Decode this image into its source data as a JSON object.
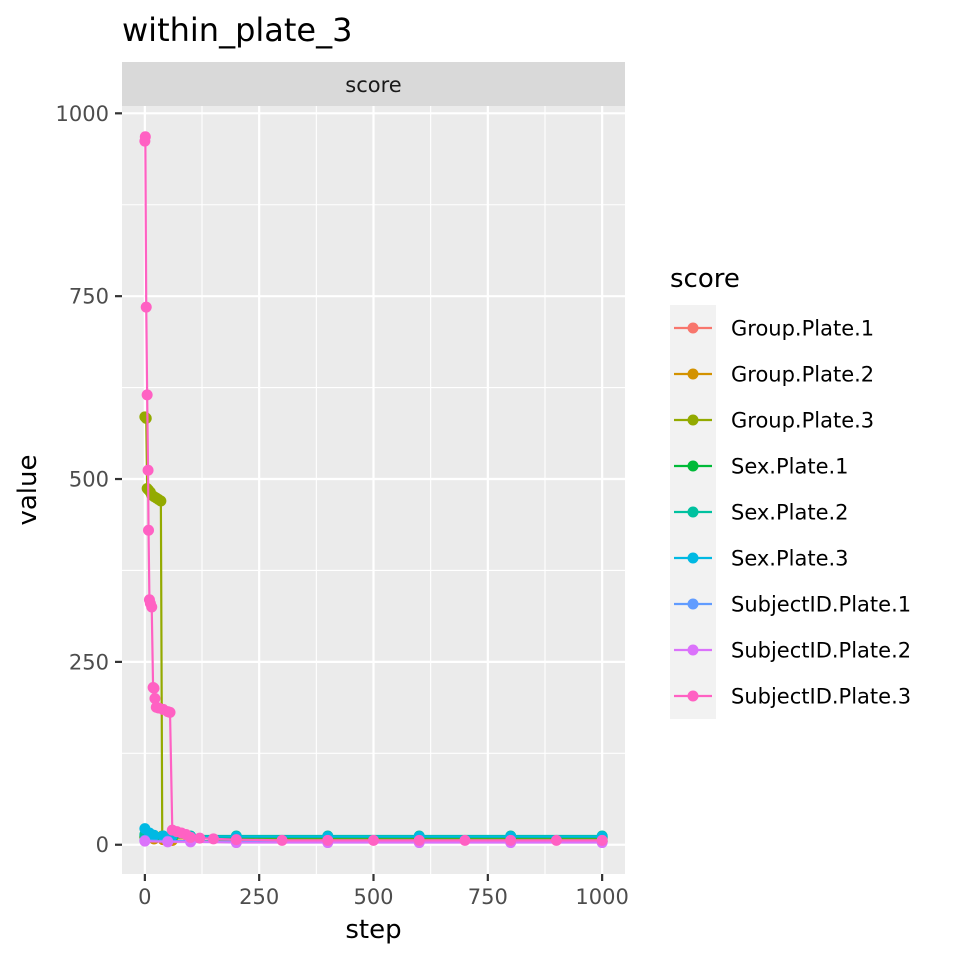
{
  "chart_data": {
    "type": "line",
    "title": "within_plate_3",
    "facet_label": "score",
    "xlabel": "step",
    "ylabel": "value",
    "xlim": [
      -50,
      1050
    ],
    "ylim": [
      -40,
      1010
    ],
    "x_ticks": [
      0,
      250,
      500,
      750,
      1000
    ],
    "x_tick_labels": [
      "0",
      "250",
      "500",
      "750",
      "1000"
    ],
    "y_ticks": [
      0,
      250,
      500,
      750,
      1000
    ],
    "y_tick_labels": [
      "0",
      "250",
      "500",
      "750",
      "1000"
    ],
    "grid": true,
    "legend": {
      "title": "score",
      "position": "right"
    },
    "series": [
      {
        "name": "Group.Plate.1",
        "color": "#F8766D",
        "points": [
          [
            0,
            10
          ],
          [
            20,
            8
          ],
          [
            40,
            7
          ],
          [
            60,
            6
          ],
          [
            100,
            5
          ],
          [
            200,
            5
          ],
          [
            400,
            5
          ],
          [
            600,
            5
          ],
          [
            800,
            5
          ],
          [
            1000,
            5
          ]
        ]
      },
      {
        "name": "Group.Plate.2",
        "color": "#D39200",
        "points": [
          [
            0,
            10
          ],
          [
            20,
            8
          ],
          [
            40,
            7
          ],
          [
            60,
            6
          ],
          [
            100,
            5
          ],
          [
            200,
            5
          ],
          [
            400,
            5
          ],
          [
            600,
            5
          ],
          [
            800,
            5
          ],
          [
            1000,
            5
          ]
        ]
      },
      {
        "name": "Group.Plate.3",
        "color": "#93AA00",
        "points": [
          [
            0,
            585
          ],
          [
            3,
            583
          ],
          [
            5,
            487
          ],
          [
            8,
            485
          ],
          [
            12,
            482
          ],
          [
            15,
            478
          ],
          [
            20,
            476
          ],
          [
            25,
            474
          ],
          [
            30,
            472
          ],
          [
            35,
            470
          ],
          [
            38,
            12
          ],
          [
            60,
            10
          ],
          [
            100,
            9
          ],
          [
            200,
            8
          ],
          [
            400,
            8
          ],
          [
            600,
            8
          ],
          [
            800,
            8
          ],
          [
            1000,
            8
          ]
        ]
      },
      {
        "name": "Sex.Plate.1",
        "color": "#00BA38",
        "points": [
          [
            0,
            12
          ],
          [
            20,
            11
          ],
          [
            40,
            10
          ],
          [
            60,
            10
          ],
          [
            100,
            10
          ],
          [
            200,
            10
          ],
          [
            400,
            10
          ],
          [
            600,
            10
          ],
          [
            800,
            10
          ],
          [
            1000,
            10
          ]
        ]
      },
      {
        "name": "Sex.Plate.2",
        "color": "#00C19F",
        "points": [
          [
            0,
            14
          ],
          [
            20,
            12
          ],
          [
            40,
            12
          ],
          [
            60,
            12
          ],
          [
            100,
            12
          ],
          [
            200,
            12
          ],
          [
            400,
            12
          ],
          [
            600,
            12
          ],
          [
            800,
            12
          ],
          [
            1000,
            12
          ]
        ]
      },
      {
        "name": "Sex.Plate.3",
        "color": "#00B9E3",
        "points": [
          [
            0,
            22
          ],
          [
            10,
            16
          ],
          [
            20,
            13
          ],
          [
            40,
            12
          ],
          [
            60,
            12
          ],
          [
            100,
            11
          ],
          [
            200,
            11
          ],
          [
            400,
            11
          ],
          [
            600,
            11
          ],
          [
            800,
            11
          ],
          [
            1000,
            11
          ]
        ]
      },
      {
        "name": "SubjectID.Plate.1",
        "color": "#619CFF",
        "points": [
          [
            0,
            6
          ],
          [
            50,
            5
          ],
          [
            100,
            5
          ],
          [
            200,
            4
          ],
          [
            400,
            4
          ],
          [
            600,
            4
          ],
          [
            800,
            4
          ],
          [
            1000,
            4
          ]
        ]
      },
      {
        "name": "SubjectID.Plate.2",
        "color": "#DB72FB",
        "points": [
          [
            0,
            5
          ],
          [
            50,
            4
          ],
          [
            100,
            4
          ],
          [
            200,
            3
          ],
          [
            400,
            3
          ],
          [
            600,
            3
          ],
          [
            800,
            3
          ],
          [
            1000,
            3
          ]
        ]
      },
      {
        "name": "SubjectID.Plate.3",
        "color": "#FF61C3",
        "points": [
          [
            0,
            962
          ],
          [
            1,
            968
          ],
          [
            3,
            735
          ],
          [
            5,
            615
          ],
          [
            7,
            512
          ],
          [
            8,
            430
          ],
          [
            10,
            335
          ],
          [
            12,
            330
          ],
          [
            15,
            325
          ],
          [
            18,
            215
          ],
          [
            20,
            214
          ],
          [
            22,
            200
          ],
          [
            25,
            188
          ],
          [
            30,
            187
          ],
          [
            40,
            185
          ],
          [
            50,
            182
          ],
          [
            55,
            181
          ],
          [
            60,
            20
          ],
          [
            70,
            18
          ],
          [
            80,
            16
          ],
          [
            90,
            14
          ],
          [
            100,
            10
          ],
          [
            120,
            9
          ],
          [
            150,
            8
          ],
          [
            200,
            7
          ],
          [
            300,
            6
          ],
          [
            400,
            6
          ],
          [
            500,
            6
          ],
          [
            600,
            6
          ],
          [
            700,
            6
          ],
          [
            800,
            6
          ],
          [
            900,
            6
          ],
          [
            1000,
            6
          ]
        ]
      }
    ]
  }
}
